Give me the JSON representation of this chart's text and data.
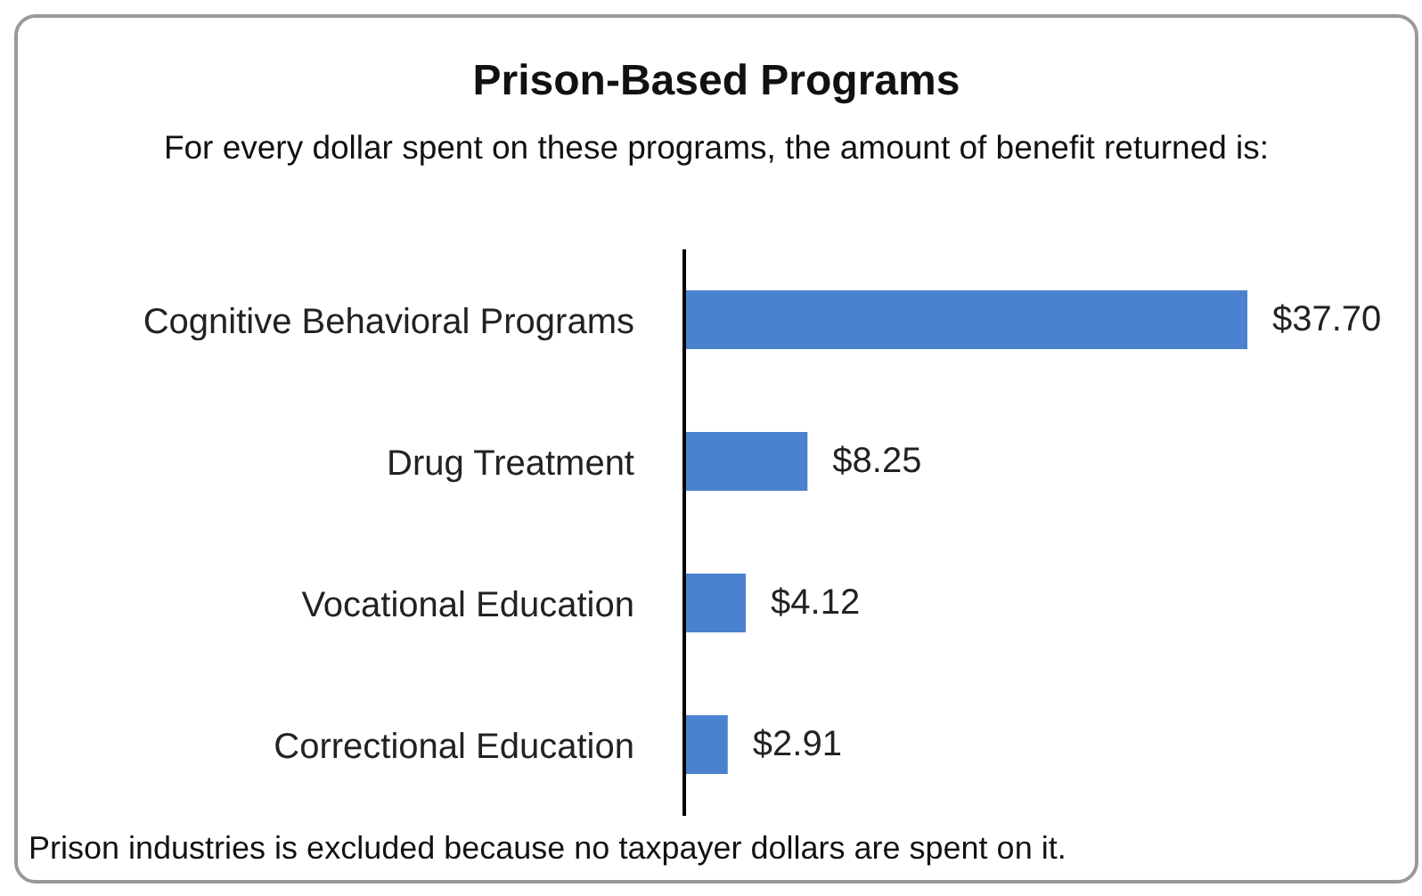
{
  "chart_data": {
    "type": "bar",
    "orientation": "horizontal",
    "title": "Prison-Based Programs",
    "subtitle": "For every dollar spent on these programs, the amount of benefit returned is:",
    "categories": [
      "Cognitive Behavioral Programs",
      "Drug Treatment",
      "Vocational Education",
      "Correctional Education"
    ],
    "values": [
      37.7,
      8.25,
      4.12,
      2.91
    ],
    "value_labels": [
      "$37.70",
      "$8.25",
      "$4.12",
      "$2.91"
    ],
    "color": "#4a82cf",
    "annotations": [
      "Prison industries is excluded because no taxpayer dollars are spent on it."
    ]
  }
}
